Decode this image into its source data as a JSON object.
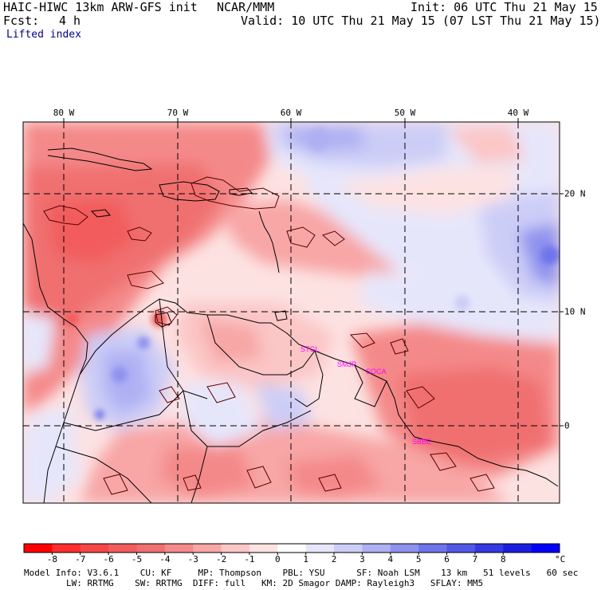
{
  "header": {
    "model_title": "HAIC-HIWC 13km ARW-GFS init",
    "center": "NCAR/MMM",
    "init_text": "Init: 06 UTC Thu 21 May 15",
    "fcst_label": "Fcst:",
    "fcst_value": "4 h",
    "valid_text": "Valid: 10 UTC Thu 21 May 15 (07 LST Thu 21 May 15)",
    "field_name": "Lifted index"
  },
  "map": {
    "lon_labels": [
      "80 W",
      "70 W",
      "60 W",
      "50 W",
      "40 W"
    ],
    "lat_labels": [
      "20 N",
      "10 N",
      "0"
    ],
    "site_labels": [
      "STGL",
      "SMJP",
      "SOCA",
      "SBBE"
    ],
    "site_color": "#ff00ff",
    "contour_color": "#5a0000",
    "gridline_color": "#000000"
  },
  "colorbar": {
    "tick_labels": [
      "-8",
      "-7",
      "-6",
      "-5",
      "-4",
      "-3",
      "-2",
      "-1",
      "0",
      "1",
      "2",
      "3",
      "4",
      "5",
      "6",
      "7",
      "8"
    ],
    "unit": "°C",
    "colors": [
      "#ff0000",
      "#ff2d2d",
      "#f64646",
      "#f25c5c",
      "#f07070",
      "#f48989",
      "#f8a6a6",
      "#fbc6c6",
      "#fde2e2",
      "#ffffff",
      "#e6e6fb",
      "#cccdf7",
      "#aeb0f3",
      "#8e92ee",
      "#6f74ea",
      "#5258e6",
      "#3439e2",
      "#1a1fdf",
      "#0000ff"
    ]
  },
  "footer": {
    "line1": "Model Info: V3.6.1    CU: KF     MP: Thompson    PBL: YSU      SF: Noah LSM    13 km   51 levels   60 sec",
    "line2": "        LW: RRTMG    SW: RRTMG  DIFF: full   KM: 2D Smagor DAMP: Rayleigh3   SFLAY: MM5"
  }
}
